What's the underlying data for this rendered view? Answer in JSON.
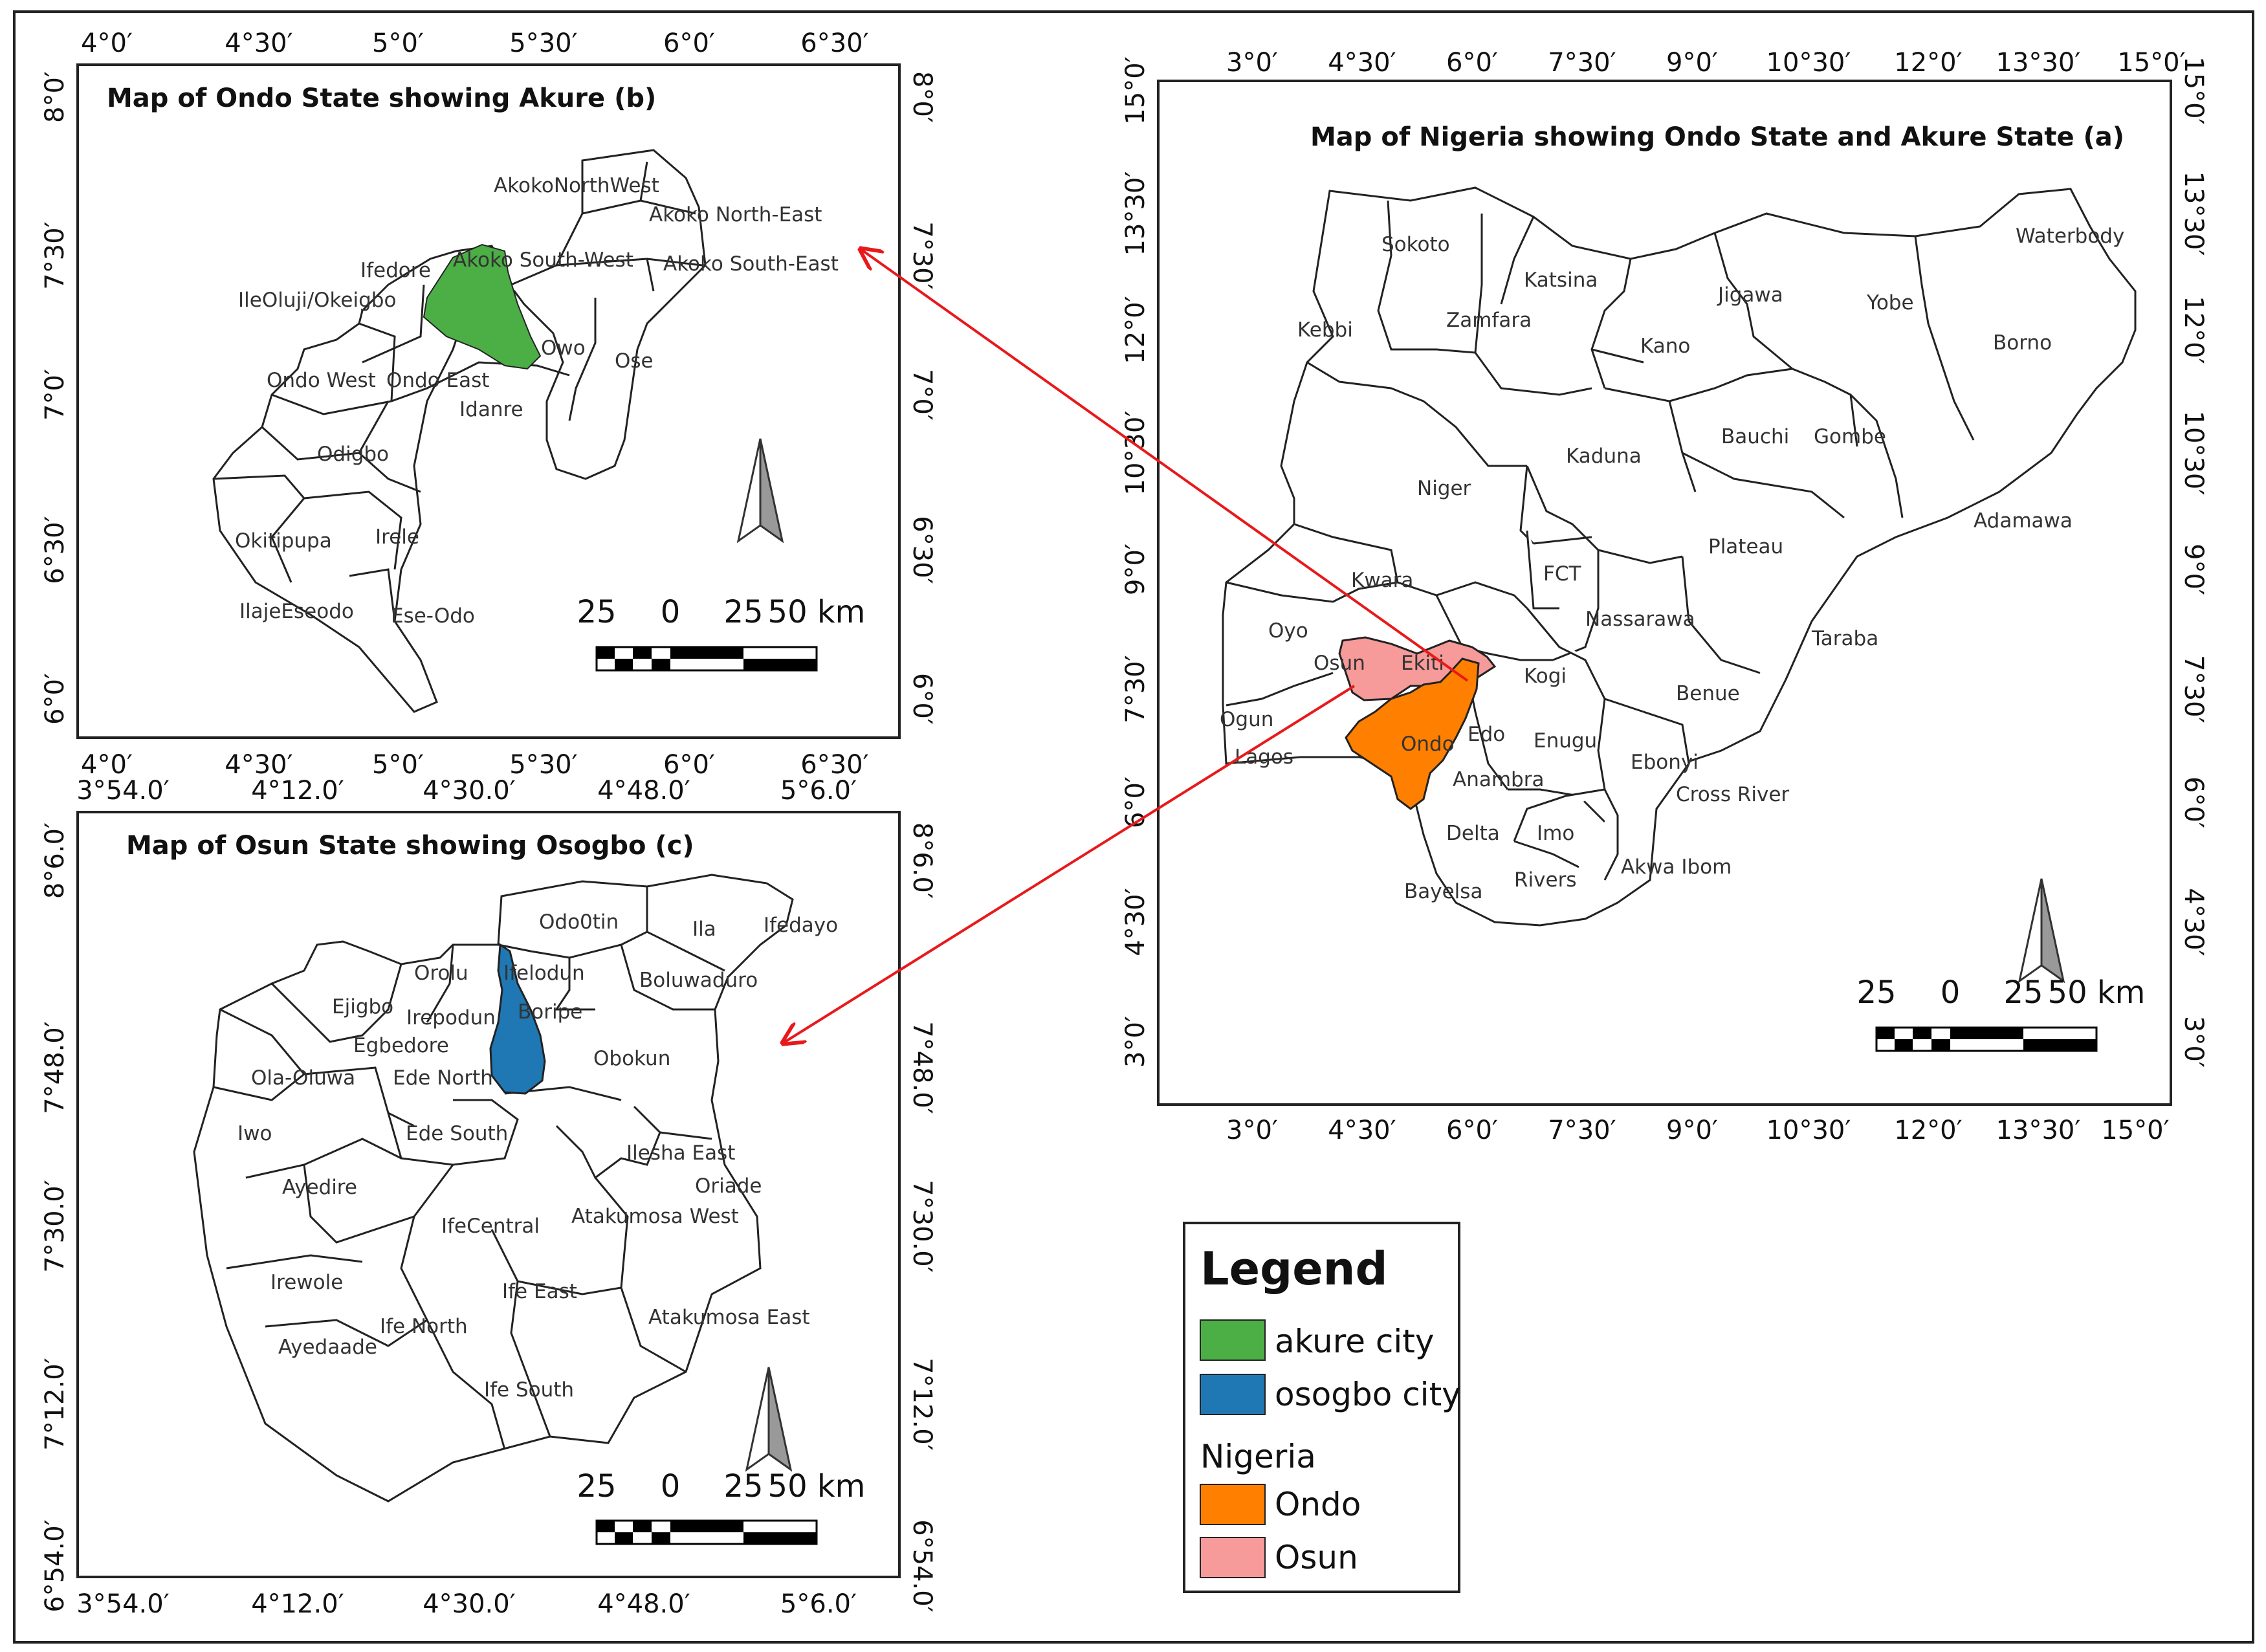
{
  "colors": {
    "akure": "#4caf45",
    "osogbo": "#1f78b4",
    "ondo": "#ff8000",
    "osun": "#f79a9a",
    "arrow": "#e8191b"
  },
  "north_arrow_icon": "north-arrow-icon",
  "map_a": {
    "title": "Map of Nigeria showing Ondo State and Akure State  (a)",
    "ticks_x": [
      "3°0′",
      "4°30′",
      "6°0′",
      "7°30′",
      "9°0′",
      "10°30′",
      "12°0′",
      "13°30′",
      "15°0′"
    ],
    "ticks_y": [
      "15°0′",
      "13°30′",
      "12°0′",
      "10°30′",
      "9°0′",
      "7°30′",
      "6°0′",
      "4°30′",
      "3°0′"
    ],
    "scale": {
      "s1": "25",
      "s2": "0",
      "s3": "25",
      "s4": "50 km"
    },
    "states": {
      "sokoto": "Sokoto",
      "katsina": "Katsina",
      "kebbi": "Kebbi",
      "zamfara": "Zamfara",
      "jigawa": "Jigawa",
      "kano": "Kano",
      "yobe": "Yobe",
      "borno": "Borno",
      "waterbody": "Waterbody",
      "niger": "Niger",
      "kaduna": "Kaduna",
      "bauchi": "Bauchi",
      "gombe": "Gombe",
      "adamawa": "Adamawa",
      "plateau": "Plateau",
      "fct": "FCT",
      "kwara": "Kwara",
      "nassarawa": "Nassarawa",
      "taraba": "Taraba",
      "oyo": "Oyo",
      "osun": "Osun",
      "ekiti": "Ekiti",
      "kogi": "Kogi",
      "benue": "Benue",
      "ogun": "Ogun",
      "ondo": "Ondo",
      "edo": "Edo",
      "enugu": "Enugu",
      "ebonyi": "Ebonyi",
      "lagos": "Lagos",
      "anambra": "Anambra",
      "cross_river": "Cross River",
      "delta": "Delta",
      "imo": "Imo",
      "rivers": "Rivers",
      "akwa_ibom": "Akwa Ibom",
      "bayelsa": "Bayelsa"
    }
  },
  "map_b": {
    "title": "Map of Ondo State showing Akure   (b)",
    "ticks_x": [
      "4°0′",
      "4°30′",
      "5°0′",
      "5°30′",
      "6°0′",
      "6°30′"
    ],
    "ticks_y": [
      "8°0′",
      "7°30′",
      "7°0′",
      "6°30′",
      "6°0′"
    ],
    "scale": {
      "s1": "25",
      "s2": "0",
      "s3": "25",
      "s4": "50 km"
    },
    "lgas": {
      "akoko_nw": "AkokoNorthWest",
      "akoko_ne": "Akoko North-East",
      "ifedore": "Ifedore",
      "akoko_sw": "Akoko South-West",
      "akoko_se": "Akoko South-East",
      "ileoluji": "IleOluji/Okeigbo",
      "owo": "Owo",
      "ose": "Ose",
      "ondo_west": "Ondo West",
      "ondo_east": "Ondo East",
      "idanre": "Idanre",
      "odigbo": "Odigbo",
      "okitipupa": "Okitipupa",
      "irele": "Irele",
      "ilaje": "IlajeEseodo",
      "ese_odo": "Ese-Odo"
    }
  },
  "map_c": {
    "title": "Map of Osun State showing Osogbo  (c)",
    "ticks_x": [
      "3°54.0′",
      "4°12.0′",
      "4°30.0′",
      "4°48.0′",
      "5°6.0′"
    ],
    "ticks_y": [
      "8°6.0′",
      "7°48.0′",
      "7°30.0′",
      "7°12.0′",
      "6°54.0′"
    ],
    "scale": {
      "s1": "25",
      "s2": "0",
      "s3": "25",
      "s4": "50 km"
    },
    "lgas": {
      "odootin": "Odo0tin",
      "ila": "Ila",
      "ifedayo": "Ifedayo",
      "orolu": "Orolu",
      "ifelodun": "Ifelodun",
      "boluwaduro": "Boluwaduro",
      "ejigbo": "Ejigbo",
      "irepodun": "Irepodun",
      "boripe": "Boripe",
      "egbedore": "Egbedore",
      "ola_oluwa": "Ola-Oluwa",
      "ede_north": "Ede North",
      "obokun": "Obokun",
      "iwo": "Iwo",
      "ede_south": "Ede South",
      "ilesha_east": "Ilesha East",
      "oriade": "Oriade",
      "ayedire": "Ayedire",
      "ife_central": "IfeCentral",
      "atakumosa_west": "Atakumosa West",
      "irewole": "Irewole",
      "ife_east": "Ife East",
      "ife_north": "Ife North",
      "atakumosa_east": "Atakumosa East",
      "ayedaade": "Ayedaade",
      "ife_south": "Ife South"
    }
  },
  "legend": {
    "title": "Legend",
    "akure": "akure city",
    "osogbo": "osogbo city",
    "nigeria": "Nigeria",
    "ondo": "Ondo",
    "osun": "Osun"
  }
}
